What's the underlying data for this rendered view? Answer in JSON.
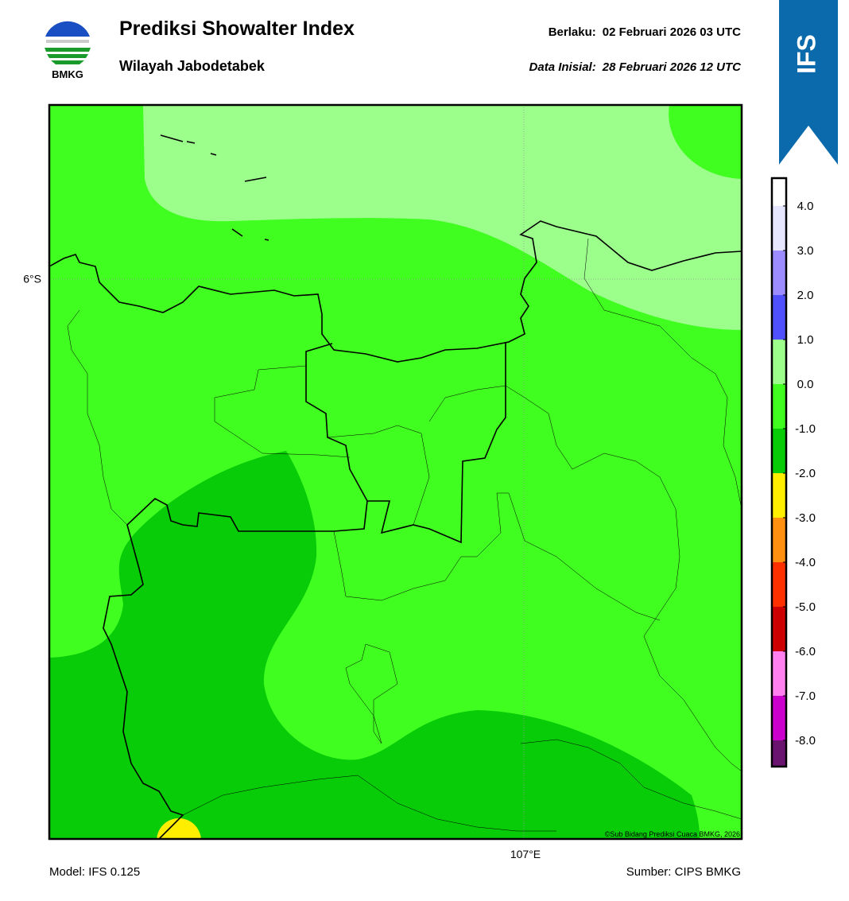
{
  "header": {
    "title": "Prediksi Showalter Index",
    "subtitle": "Wilayah Jabodetabek",
    "valid_label": "Berlaku:",
    "valid": "02 Februari 2026 03 UTC",
    "init_label": "Data Inisial:",
    "init": "28 Februari 2026 12 UTC",
    "logo": "BMKG",
    "badge": "IFS"
  },
  "map": {
    "lat_label": "6°S",
    "lon_label": "107°E",
    "credit": "©Sub Bidang Prediksi Cuaca BMKG, 2026"
  },
  "colorbar": {
    "colors": [
      "#ffffff",
      "#e6e6ff",
      "#9c8cff",
      "#5050ff",
      "#9cff8c",
      "#40ff20",
      "#08cc08",
      "#ffee00",
      "#ff9010",
      "#ff3000",
      "#cc0000",
      "#ff80ee",
      "#cc00cc",
      "#6a1470"
    ],
    "ticks": [
      {
        "value": 4,
        "label": "4.0"
      },
      {
        "value": 3,
        "label": "3.0"
      },
      {
        "value": 2,
        "label": "2.0"
      },
      {
        "value": 1,
        "label": "1.0"
      },
      {
        "value": 0,
        "label": "0.0"
      },
      {
        "value": -1,
        "label": "-1.0"
      },
      {
        "value": -2,
        "label": "-2.0"
      },
      {
        "value": -3,
        "label": "-3.0"
      },
      {
        "value": -4,
        "label": "-4.0"
      },
      {
        "value": -5,
        "label": "-5.0"
      },
      {
        "value": -6,
        "label": "-6.0"
      },
      {
        "value": -7,
        "label": "-7.0"
      },
      {
        "value": -8,
        "label": "-8.0"
      }
    ]
  },
  "footer": {
    "model": "Model: IFS 0.125",
    "source": "Sumber: CIPS BMKG"
  }
}
